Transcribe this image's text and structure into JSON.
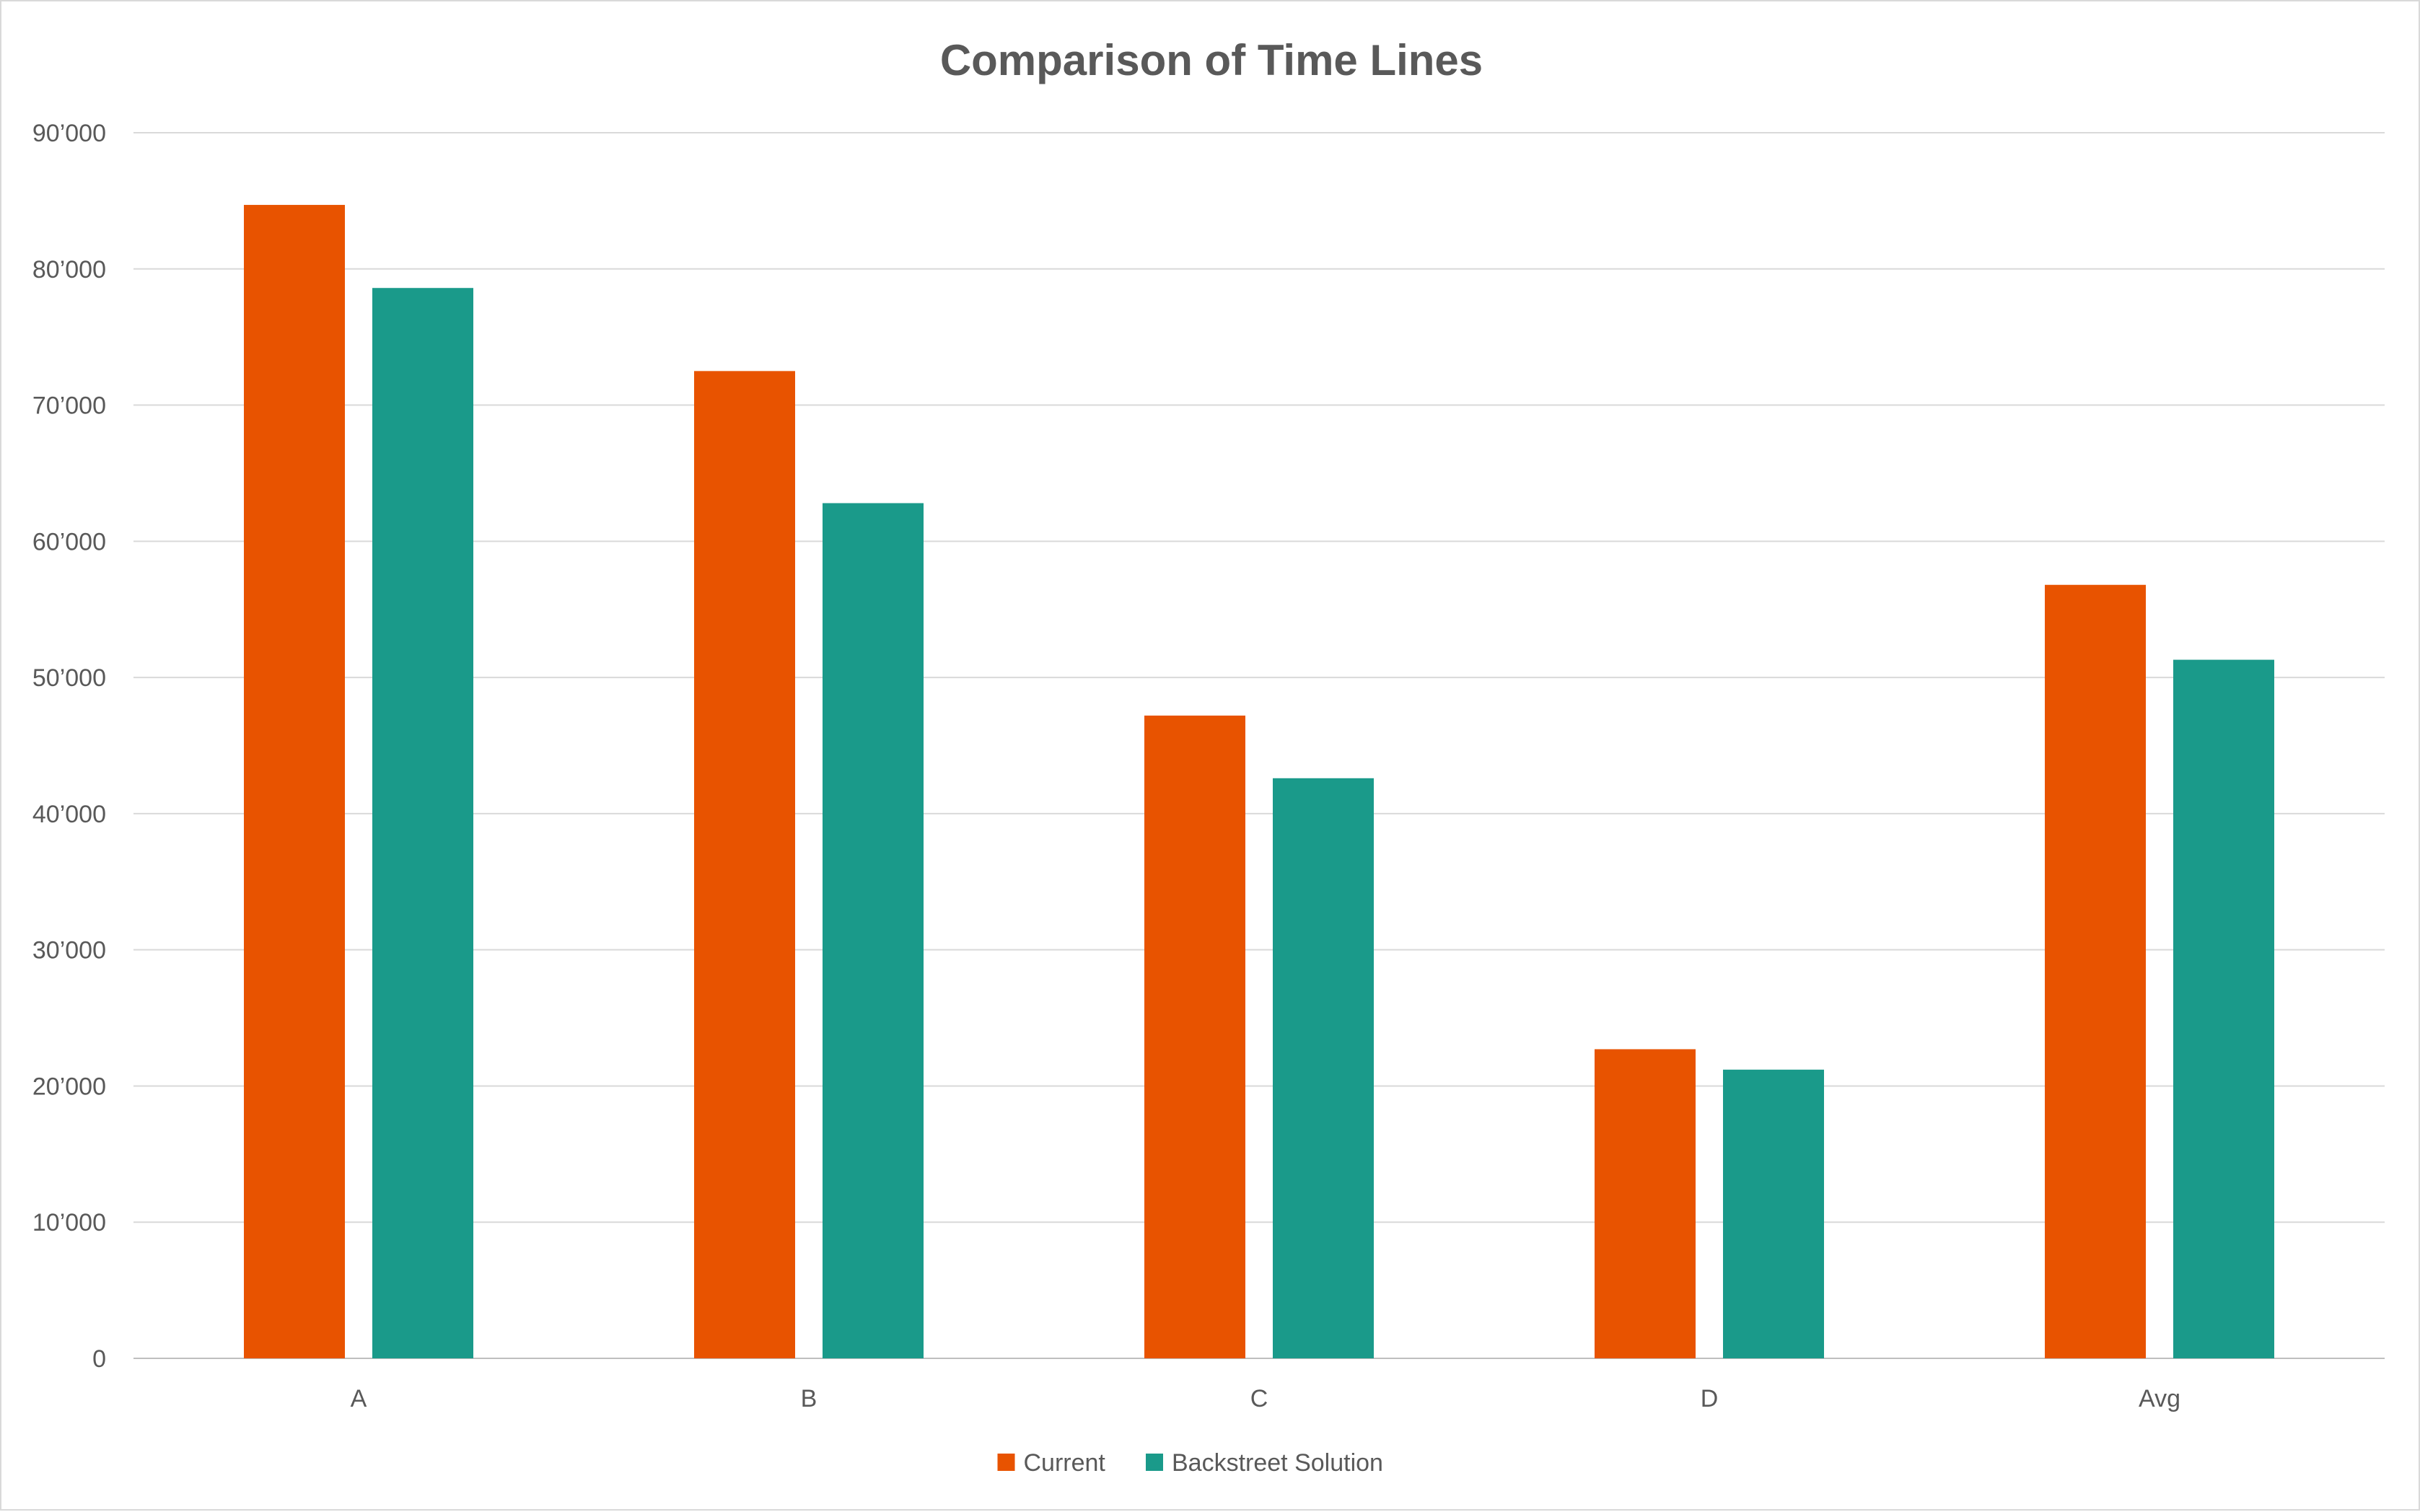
{
  "chart_data": {
    "type": "bar",
    "title": "Comparison of Time Lines",
    "xlabel": "",
    "ylabel": "",
    "categories": [
      "A",
      "B",
      "C",
      "D",
      "Avg"
    ],
    "series": [
      {
        "name": "Current",
        "color": "#E85300",
        "values": [
          84700,
          72500,
          47200,
          22700,
          56800
        ]
      },
      {
        "name": "Backstreet Solution",
        "color": "#1A9A8A",
        "values": [
          78600,
          62800,
          42600,
          21200,
          51300
        ]
      }
    ],
    "ylim": [
      0,
      90000
    ],
    "yticks": [
      "0",
      "10’000",
      "20’000",
      "30’000",
      "40’000",
      "50’000",
      "60’000",
      "70’000",
      "80’000",
      "90’000"
    ],
    "grid": true,
    "legend": "bottom"
  }
}
